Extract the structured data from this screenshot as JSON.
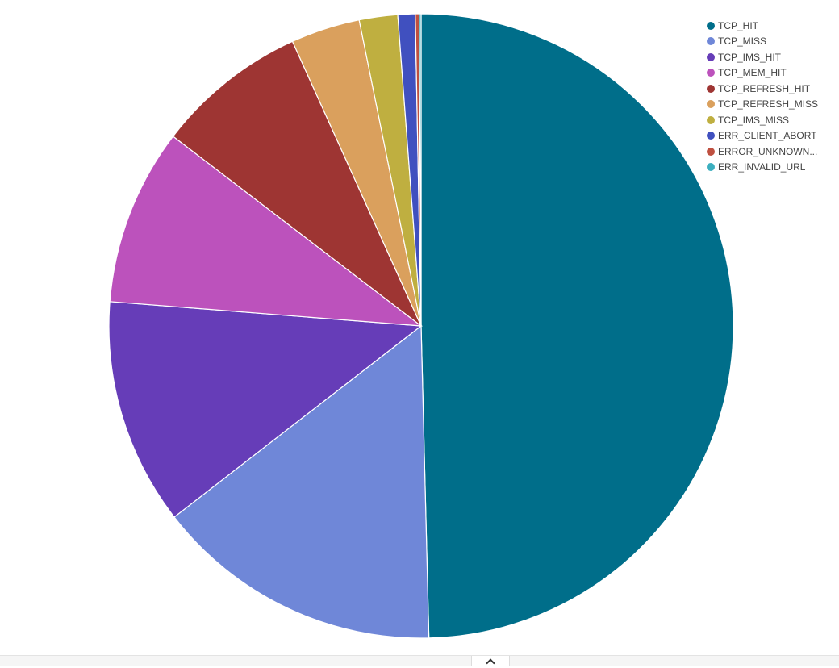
{
  "chart_data": {
    "type": "pie",
    "title": "",
    "legend_position": "top-right",
    "categories": [
      "TCP_HIT",
      "TCP_MISS",
      "TCP_IMS_HIT",
      "TCP_MEM_HIT",
      "TCP_REFRESH_HIT",
      "TCP_REFRESH_MISS",
      "TCP_IMS_MISS",
      "ERR_CLIENT_ABORT",
      "ERROR_UNKNOWN...",
      "ERR_INVALID_URL"
    ],
    "values": [
      49.9,
      15.0,
      11.8,
      9.2,
      7.9,
      3.6,
      2.0,
      0.9,
      0.2,
      0.1
    ],
    "colors": [
      "#006E8A",
      "#6F87D8",
      "#663DB8",
      "#BC52BC",
      "#9E3533",
      "#DAA05D",
      "#BFAF40",
      "#4050BF",
      "#BF5040",
      "#3CAFBF"
    ]
  },
  "footer": {
    "collapse_icon": "chevron-up-icon"
  }
}
